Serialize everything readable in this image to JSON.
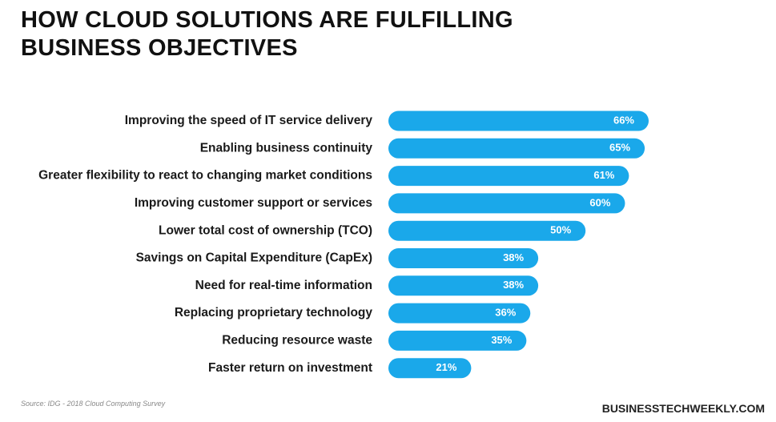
{
  "chart_data": {
    "type": "bar",
    "orientation": "horizontal",
    "title": "HOW CLOUD SOLUTIONS ARE FULFILLING BUSINESS OBJECTIVES",
    "categories": [
      "Improving the speed of IT service delivery",
      "Enabling business continuity",
      "Greater flexibility to react to changing market conditions",
      "Improving customer support or services",
      "Lower total cost of ownership (TCO)",
      "Savings on Capital Expenditure (CapEx)",
      "Need for real-time information",
      "Replacing proprietary technology",
      "Reducing resource waste",
      "Faster return on investment"
    ],
    "values": [
      66,
      65,
      61,
      60,
      50,
      38,
      38,
      36,
      35,
      21
    ],
    "value_labels": [
      "66%",
      "65%",
      "61%",
      "60%",
      "50%",
      "38%",
      "38%",
      "36%",
      "35%",
      "21%"
    ],
    "color": "#1aa8ea",
    "source": "Source: IDG - 2018 Cloud Computing Survey",
    "brand": "BUSINESSTECHWEEKLY.COM"
  }
}
